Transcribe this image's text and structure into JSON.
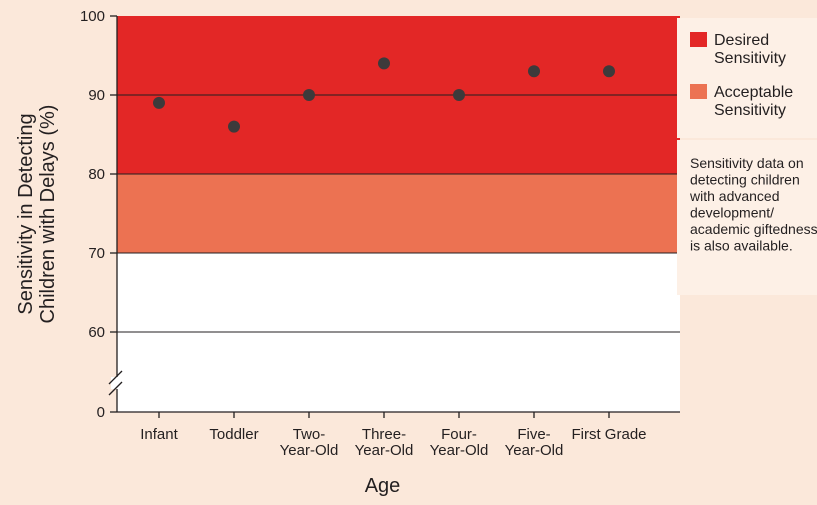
{
  "chart_data": {
    "type": "scatter",
    "categories": [
      "Infant",
      "Toddler",
      "Two-Year-Old",
      "Three-Year-Old",
      "Four-Year-Old",
      "Five-Year-Old",
      "First Grade"
    ],
    "category_label_lines": [
      [
        "Infant"
      ],
      [
        "Toddler"
      ],
      [
        "Two-",
        "Year-Old"
      ],
      [
        "Three-",
        "Year-Old"
      ],
      [
        "Four-",
        "Year-Old"
      ],
      [
        "Five-",
        "Year-Old"
      ],
      [
        "First Grade"
      ]
    ],
    "values": [
      89,
      86,
      90,
      94,
      90,
      93,
      93
    ],
    "xlabel": "Age",
    "ylabel_lines": [
      "Sensitivity in Detecting",
      "Children with Delays (%)"
    ],
    "ylim": [
      60,
      100
    ],
    "axis_break": true,
    "y_ticks": [
      100,
      90,
      80,
      70,
      60,
      0
    ],
    "bands": [
      {
        "name": "Desired Sensitivity",
        "from": 80,
        "to": 100,
        "color": "#e32726"
      },
      {
        "name": "Acceptable Sensitivity",
        "from": 70,
        "to": 80,
        "color": "#ec7252"
      }
    ],
    "legend": [
      {
        "label_lines": [
          "Desired",
          "Sensitivity"
        ],
        "color": "#e32726"
      },
      {
        "label_lines": [
          "Acceptable",
          "Sensitivity"
        ],
        "color": "#ec7252"
      }
    ],
    "legend_position": "right",
    "note_lines": [
      "Sensitivity data on",
      "detecting children",
      "with advanced",
      "development/",
      "academic giftedness",
      "is also available."
    ],
    "colors": {
      "background": "#fbe8da",
      "plot_background": "#ffffff",
      "point": "#3d3a3b",
      "axis": "#231f20",
      "legend_background": "#fdf0e6"
    }
  }
}
